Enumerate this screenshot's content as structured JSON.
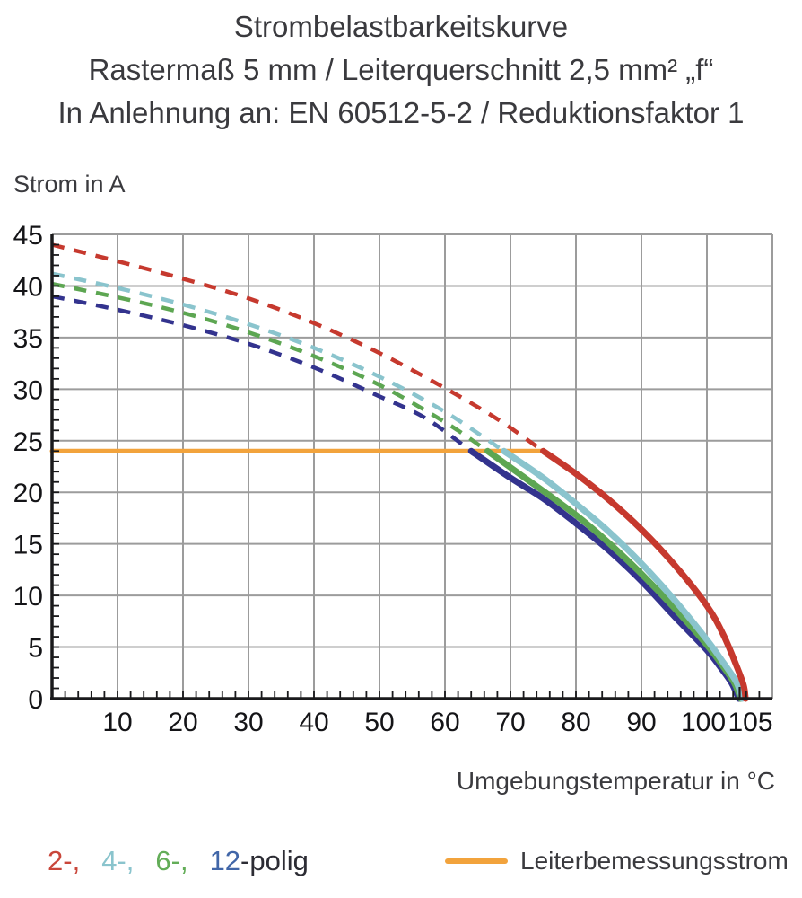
{
  "title": {
    "line1": "Strombelastbarkeitskurve",
    "line2": "Rastermaß 5 mm / Leiterquerschnitt 2,5 mm² „f“",
    "line3": "In Anlehnung an: EN 60512-5-2 / Reduktionsfaktor 1"
  },
  "legend": {
    "poles": {
      "items": [
        {
          "label": "2-,",
          "color": "#c9463a"
        },
        {
          "label": "4-,",
          "color": "#8ac4cd"
        },
        {
          "label": "6-,",
          "color": "#63ad58"
        },
        {
          "label": "12",
          "color": "#4166a8"
        }
      ],
      "suffix": "-polig",
      "suffix_color": "#2c2c34"
    },
    "rated_current": {
      "label": "Leiterbemessungsstrom",
      "color": "#f2a33c"
    }
  },
  "chart_data": {
    "type": "line",
    "title": "Strombelastbarkeitskurve",
    "xlabel": "Umgebungstemperatur in °C",
    "ylabel": "Strom in A",
    "xlim": [
      0,
      110
    ],
    "ylim": [
      0,
      45
    ],
    "grid": true,
    "grid_color": "#9c9c9c",
    "axis_color": "#1a1a1c",
    "tick_label_color": "#141417",
    "x_major_ticks": [
      10,
      20,
      30,
      40,
      50,
      60,
      70,
      80,
      90,
      100,
      105
    ],
    "x_tick_label_offsets": {
      "100": -4,
      "105": 12
    },
    "y_major_ticks": [
      0,
      5,
      10,
      15,
      20,
      25,
      30,
      35,
      40,
      45
    ],
    "x_minor_step": 2,
    "y_minor_step": 1,
    "grid_x_step": 10,
    "grid_y_step": 5,
    "rated_current_line": {
      "name": "Leiterbemessungsstrom",
      "color": "#f2a33c",
      "value": 24,
      "x_range": [
        0,
        75
      ]
    },
    "series": [
      {
        "name": "12-polig",
        "color": "#33338e",
        "dashed": [
          [
            0,
            39
          ],
          [
            10,
            37.7
          ],
          [
            20,
            36.2
          ],
          [
            30,
            34.4
          ],
          [
            40,
            32.1
          ],
          [
            50,
            29.3
          ],
          [
            57,
            27.2
          ],
          [
            64,
            24
          ]
        ],
        "solid": [
          [
            64,
            24
          ],
          [
            70,
            21.4
          ],
          [
            75,
            19.4
          ],
          [
            80,
            17
          ],
          [
            85,
            14.4
          ],
          [
            90,
            11.4
          ],
          [
            95,
            8
          ],
          [
            100,
            4.7
          ],
          [
            102,
            3.1
          ],
          [
            103.8,
            1.5
          ],
          [
            104.85,
            0
          ]
        ]
      },
      {
        "name": "6-polig",
        "color": "#5da652",
        "dashed": [
          [
            0,
            40.2
          ],
          [
            10,
            38.9
          ],
          [
            20,
            37.4
          ],
          [
            30,
            35.5
          ],
          [
            40,
            33.2
          ],
          [
            50,
            30.4
          ],
          [
            60,
            26.8
          ],
          [
            66.5,
            24
          ]
        ],
        "solid": [
          [
            66.5,
            24
          ],
          [
            72,
            21.5
          ],
          [
            80,
            17.8
          ],
          [
            85,
            15.1
          ],
          [
            90,
            12.1
          ],
          [
            95,
            8.8
          ],
          [
            100,
            5.2
          ],
          [
            102.5,
            3.1
          ],
          [
            104.2,
            1.5
          ],
          [
            105.15,
            0
          ]
        ]
      },
      {
        "name": "4-polig",
        "color": "#8ac4cd",
        "dashed": [
          [
            0,
            41.2
          ],
          [
            10,
            39.8
          ],
          [
            20,
            38.2
          ],
          [
            30,
            36.3
          ],
          [
            40,
            34
          ],
          [
            50,
            31.2
          ],
          [
            60,
            27.8
          ],
          [
            69,
            24
          ]
        ],
        "solid": [
          [
            69,
            24
          ],
          [
            75,
            21.4
          ],
          [
            80,
            18.9
          ],
          [
            85,
            16.2
          ],
          [
            90,
            13.1
          ],
          [
            95,
            9.6
          ],
          [
            100,
            5.7
          ],
          [
            102.5,
            3.5
          ],
          [
            104.5,
            1.6
          ],
          [
            105.4,
            0
          ]
        ]
      },
      {
        "name": "2-polig",
        "color": "#c6392e",
        "dashed": [
          [
            0,
            44
          ],
          [
            10,
            42.4
          ],
          [
            20,
            40.7
          ],
          [
            30,
            38.8
          ],
          [
            40,
            36.4
          ],
          [
            50,
            33.5
          ],
          [
            60,
            30.1
          ],
          [
            68,
            27.1
          ],
          [
            75,
            24
          ]
        ],
        "solid": [
          [
            75,
            24
          ],
          [
            80,
            21.8
          ],
          [
            85,
            19.3
          ],
          [
            90,
            16.4
          ],
          [
            95,
            13
          ],
          [
            100,
            9
          ],
          [
            102.5,
            6.2
          ],
          [
            104.5,
            3.2
          ],
          [
            105.6,
            1.3
          ],
          [
            105.9,
            0
          ]
        ]
      }
    ]
  }
}
